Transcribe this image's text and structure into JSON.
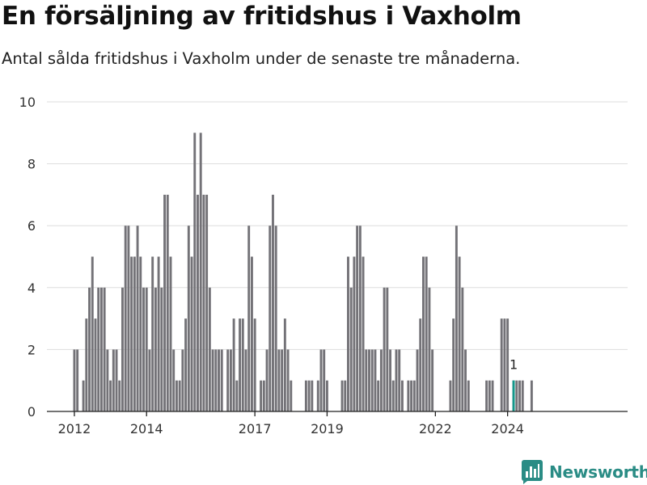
{
  "title": "En försäljning av fritidshus i Vaxholm",
  "subtitle": "Antal sålda fritidshus i Vaxholm under de senaste tre månaderna.",
  "brand": {
    "name": "Newsworthy",
    "icon": "newsworthy-logo-icon"
  },
  "colors": {
    "bar": "#737277",
    "highlight": "#14978a",
    "grid": "#dddddd",
    "axis": "#222222",
    "brand": "#2a8c85"
  },
  "chart_data": {
    "type": "bar",
    "title": "",
    "xlabel": "",
    "ylabel": "",
    "ylim": [
      0,
      10
    ],
    "yticks": [
      0,
      2,
      4,
      6,
      8,
      10
    ],
    "grid": true,
    "x_tick_labels": [
      "2012",
      "2014",
      "2017",
      "2019",
      "2022",
      "2024"
    ],
    "x_tick_dates": [
      "2012-01",
      "2014-01",
      "2017-01",
      "2019-01",
      "2022-01",
      "2024-01"
    ],
    "start_month": "2012-01",
    "values": [
      2,
      2,
      0,
      1,
      3,
      4,
      5,
      3,
      4,
      4,
      4,
      2,
      1,
      2,
      2,
      1,
      4,
      6,
      6,
      5,
      5,
      6,
      5,
      4,
      4,
      2,
      5,
      4,
      5,
      4,
      7,
      7,
      5,
      2,
      1,
      1,
      2,
      3,
      6,
      5,
      9,
      7,
      9,
      7,
      7,
      4,
      2,
      2,
      2,
      2,
      0,
      2,
      2,
      3,
      1,
      3,
      3,
      2,
      6,
      5,
      3,
      0,
      1,
      1,
      2,
      6,
      7,
      6,
      2,
      2,
      3,
      2,
      1,
      0,
      0,
      0,
      0,
      1,
      1,
      1,
      0,
      1,
      2,
      2,
      1,
      0,
      0,
      0,
      0,
      1,
      1,
      5,
      4,
      5,
      6,
      6,
      5,
      2,
      2,
      2,
      2,
      1,
      2,
      4,
      4,
      2,
      1,
      2,
      2,
      1,
      0,
      1,
      1,
      1,
      2,
      3,
      5,
      5,
      4,
      2,
      0,
      0,
      0,
      0,
      0,
      1,
      3,
      6,
      5,
      4,
      2,
      1,
      0,
      0,
      0,
      0,
      0,
      1,
      1,
      1,
      0,
      0,
      3,
      3,
      3,
      0,
      1,
      1,
      1,
      1,
      0,
      0,
      1
    ],
    "highlight": {
      "month": "2024-03",
      "value": 1,
      "label": "1"
    }
  }
}
